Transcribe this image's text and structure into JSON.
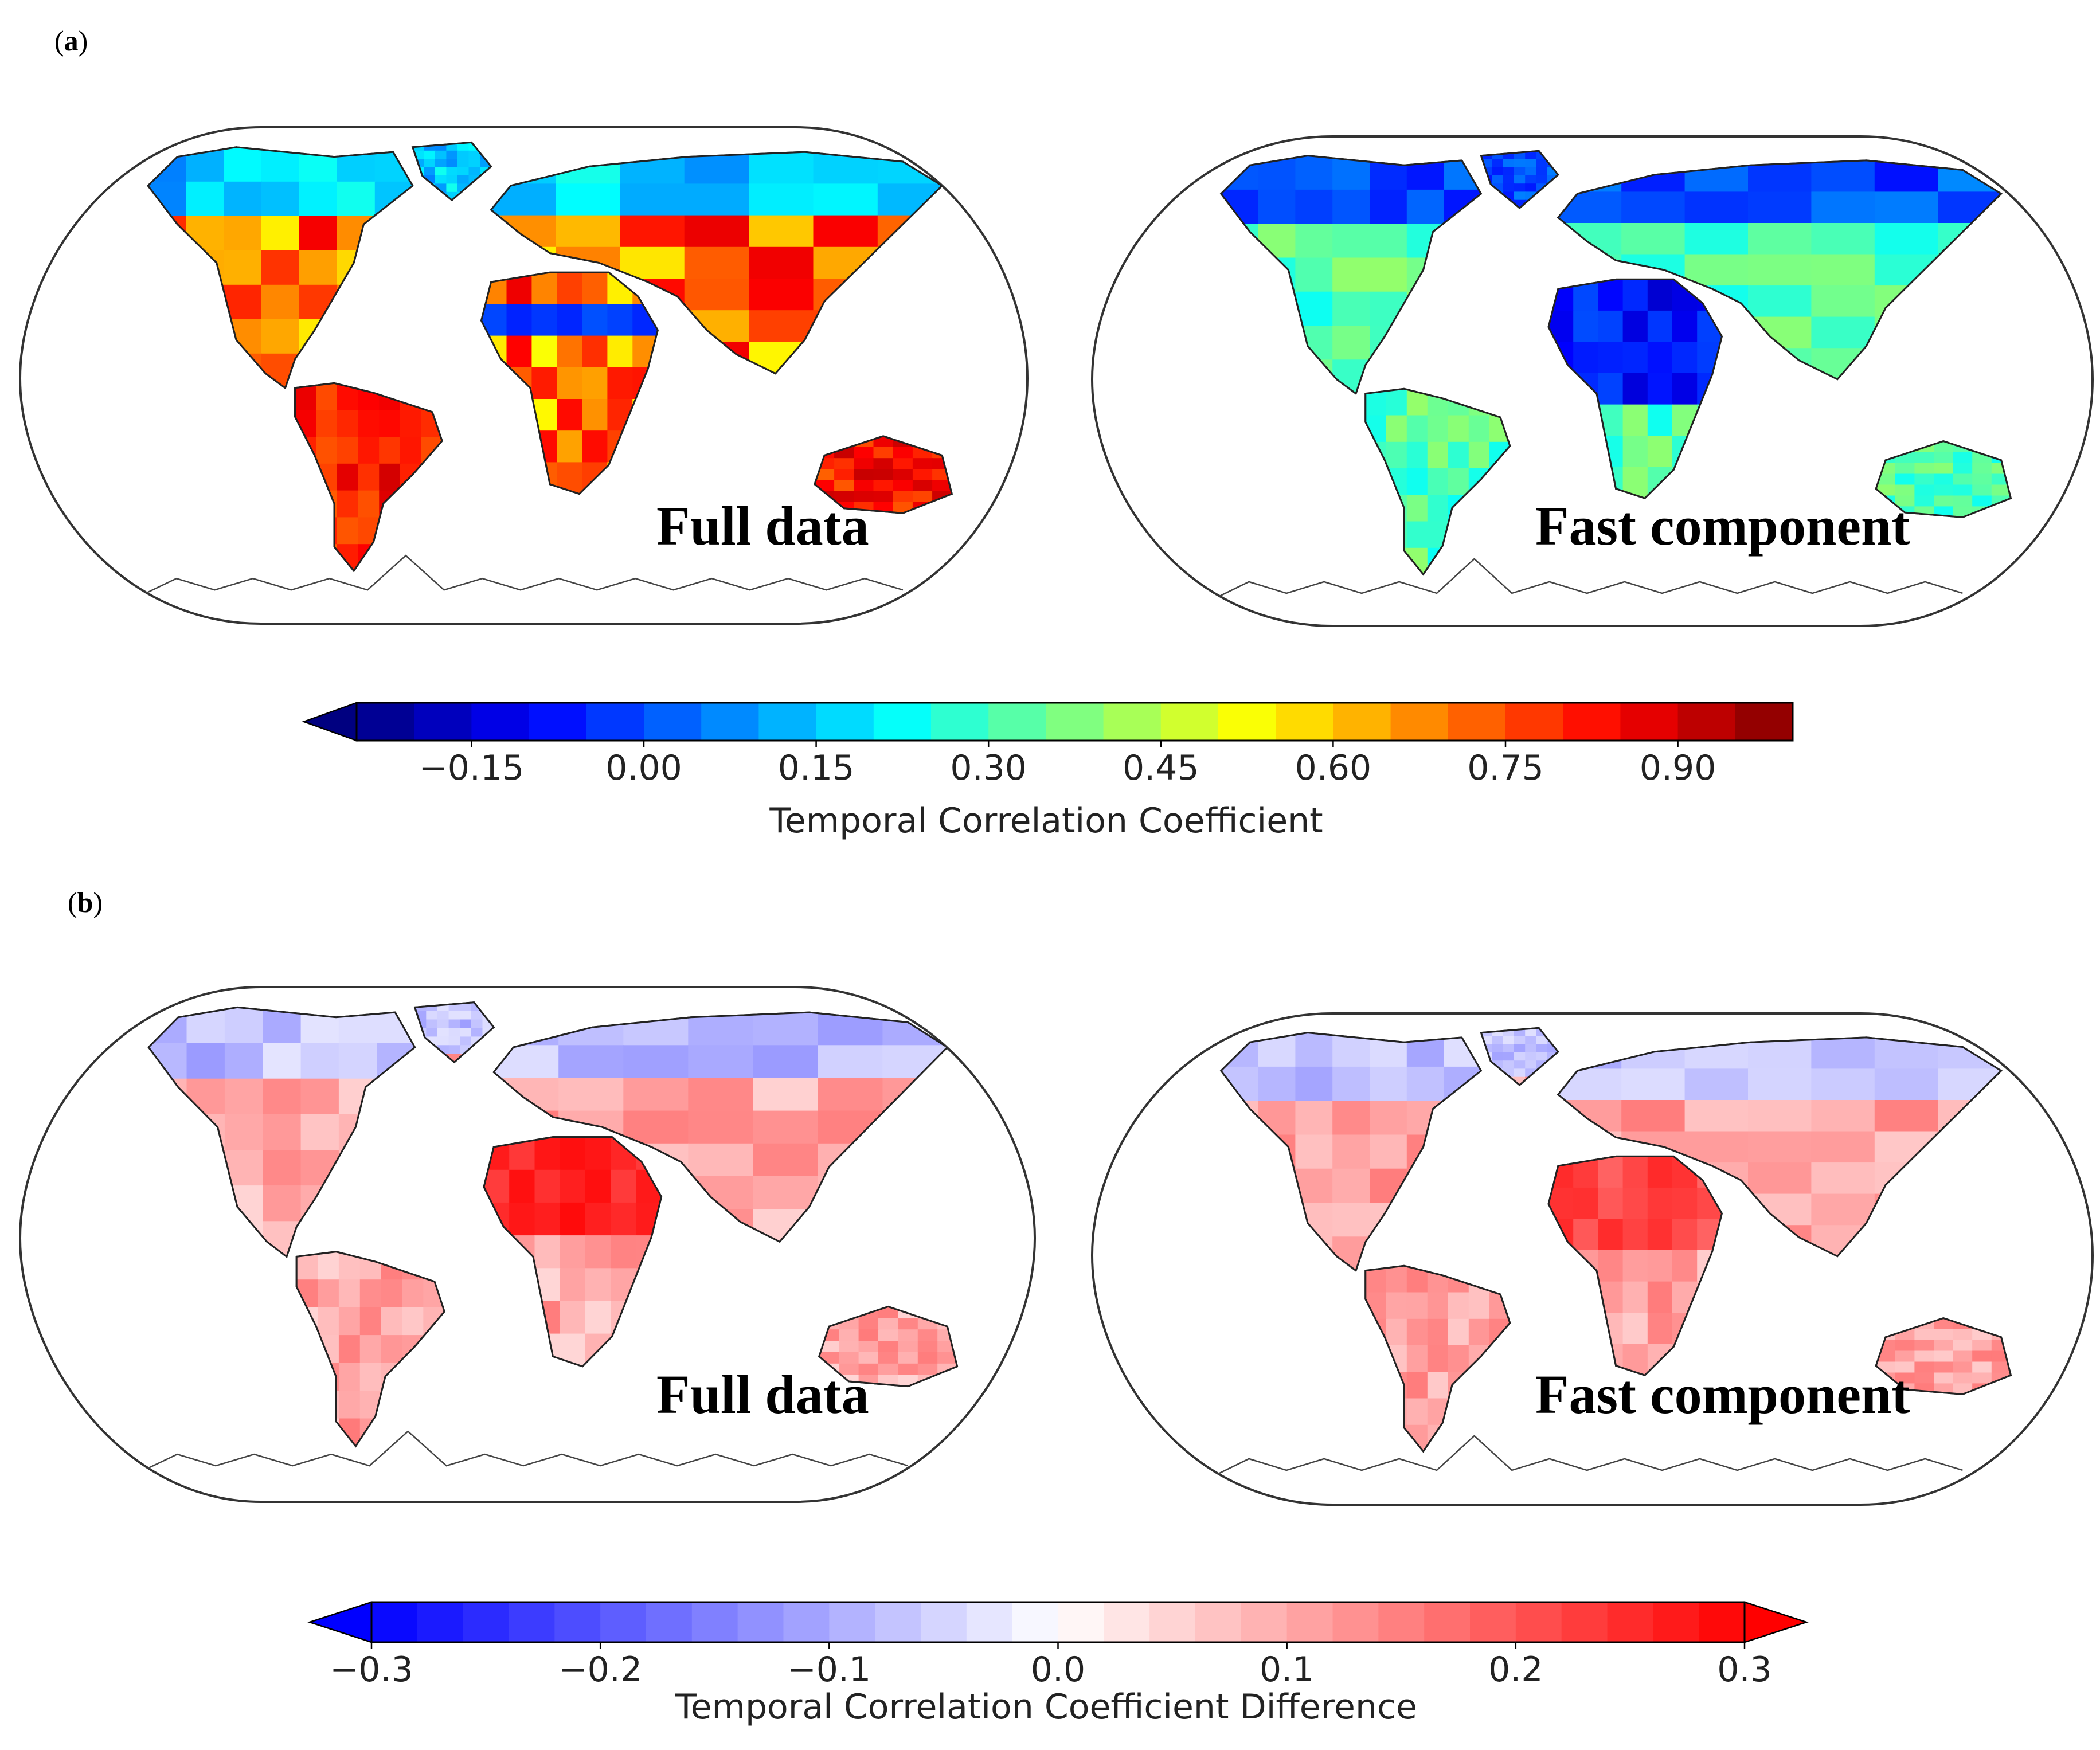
{
  "panels": [
    {
      "tag": "a",
      "maps": [
        {
          "label": "Full data",
          "field": "full_corr"
        },
        {
          "label": "Fast component",
          "field": "fast_corr"
        }
      ],
      "colorbar": {
        "colormap": "jet",
        "min": -0.25,
        "max": 1.0,
        "step": 0.05,
        "extend": "min",
        "ticks": [
          -0.15,
          0.0,
          0.15,
          0.3,
          0.45,
          0.6,
          0.75,
          0.9
        ],
        "tick_labels": [
          "−0.15",
          "0.00",
          "0.15",
          "0.30",
          "0.45",
          "0.60",
          "0.75",
          "0.90"
        ],
        "title": "Temporal Correlation Coefficient"
      }
    },
    {
      "tag": "b",
      "maps": [
        {
          "label": "Full data",
          "field": "full_diff"
        },
        {
          "label": "Fast component",
          "field": "fast_diff"
        }
      ],
      "colorbar": {
        "colormap": "bwr",
        "min": -0.3,
        "max": 0.3,
        "step": 0.02,
        "extend": "both",
        "ticks": [
          -0.3,
          -0.2,
          -0.1,
          0.0,
          0.1,
          0.2,
          0.3
        ],
        "tick_labels": [
          "−0.3",
          "−0.2",
          "−0.1",
          "0.0",
          "0.1",
          "0.2",
          "0.3"
        ],
        "title": "Temporal Correlation Coefficient Difference"
      }
    }
  ],
  "colors": {
    "land_outline": "#222222",
    "map_frame": "#333333"
  }
}
